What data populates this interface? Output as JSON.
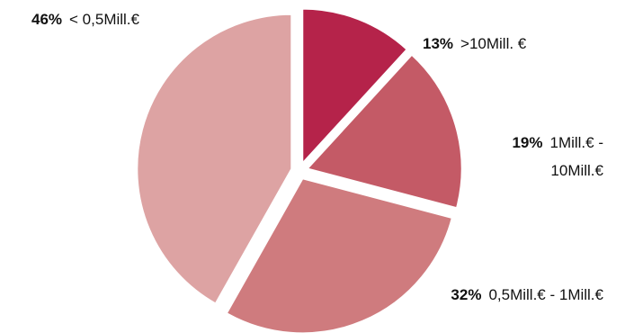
{
  "chart_data": {
    "type": "pie",
    "categories": [
      ">10Mill. €",
      "1Mill.€ - 10Mill.€",
      "0,5Mill.€ - 1Mill.€",
      "< 0,5Mill.€"
    ],
    "values": [
      13,
      19,
      32,
      46
    ],
    "value_labels": [
      "13%",
      "19%",
      "32%",
      "46%"
    ],
    "colors": [
      "#b5234a",
      "#c45a66",
      "#cf7b7e",
      "#dda3a3"
    ]
  }
}
